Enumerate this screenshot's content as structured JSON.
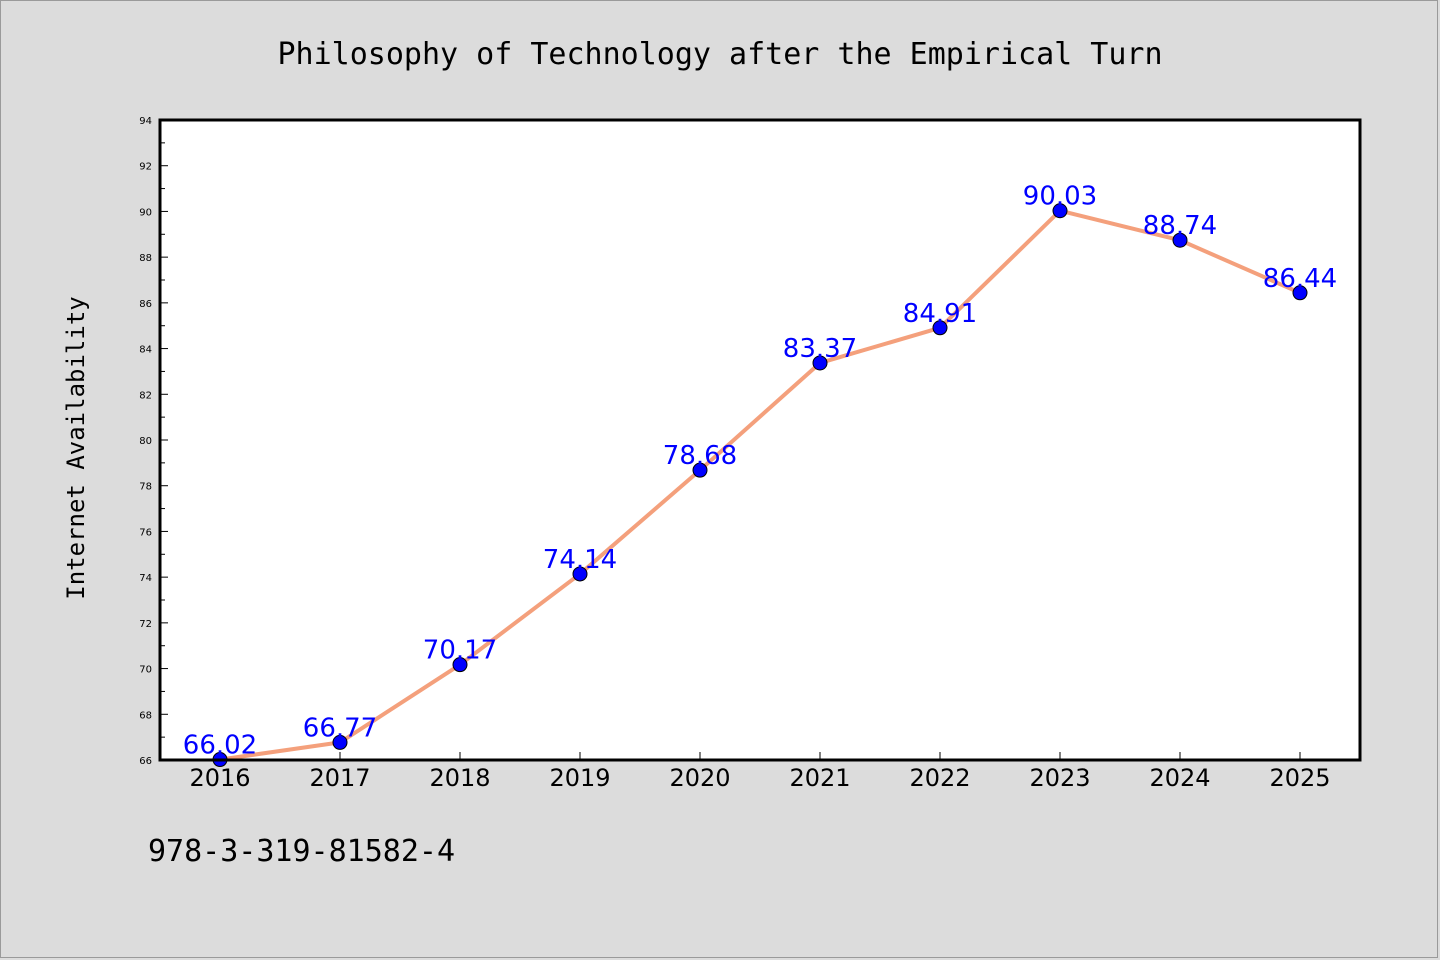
{
  "colors": {
    "background": "#dcdcdc",
    "plot_bg": "#ffffff",
    "line": "#f4a07c",
    "marker": "#0000ff",
    "data_label": "#0000ff"
  },
  "caption": "978-3-319-81582-4",
  "chart_data": {
    "type": "line",
    "title": "Philosophy of Technology after the Empirical Turn",
    "xlabel": "",
    "ylabel": "Internet Availability",
    "categories": [
      "2016",
      "2017",
      "2018",
      "2019",
      "2020",
      "2021",
      "2022",
      "2023",
      "2024",
      "2025"
    ],
    "series": [
      {
        "values": [
          66.02,
          66.77,
          70.17,
          74.14,
          78.68,
          83.37,
          84.91,
          90.03,
          88.74,
          86.44
        ],
        "labels": [
          "66.02",
          "66.77",
          "70.17",
          "74.14",
          "78.68",
          "83.37",
          "84.91",
          "90.03",
          "88.74",
          "86.44"
        ]
      }
    ],
    "ylim": [
      66,
      94
    ],
    "yticks": [
      "66",
      "68",
      "70",
      "72",
      "74",
      "76",
      "78",
      "80",
      "82",
      "84",
      "86",
      "88",
      "90",
      "92",
      "94"
    ],
    "grid": false,
    "legend": "none",
    "markers": "circle"
  }
}
